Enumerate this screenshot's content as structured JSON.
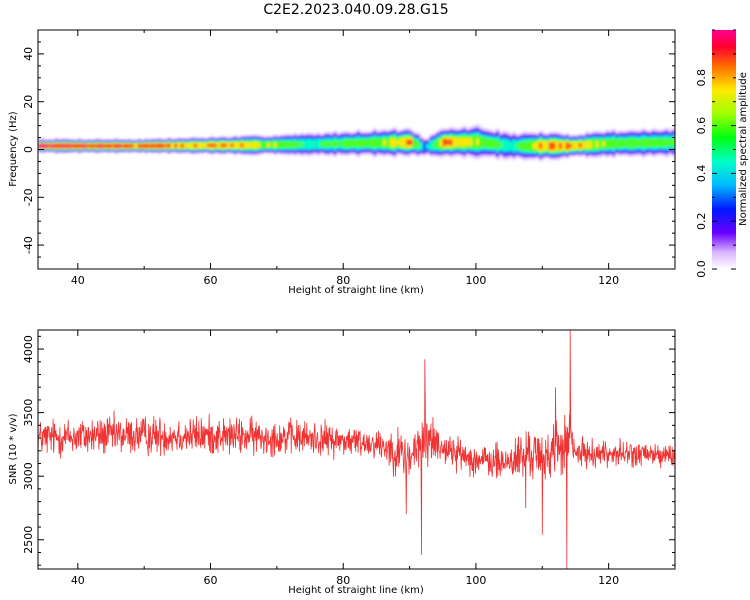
{
  "title": "C2E2.2023.040.09.28.G15",
  "chart_data": [
    {
      "type": "heatmap",
      "name": "spectrogram",
      "xlabel": "Height of straight line (km)",
      "ylabel": "Frequency (Hz)",
      "xlim": [
        34,
        130
      ],
      "ylim": [
        -50,
        50
      ],
      "xticks": [
        40,
        60,
        80,
        100,
        120
      ],
      "yticks": [
        -40,
        -20,
        0,
        20,
        40
      ],
      "colormap": "rainbow (purple-blue-cyan-green-yellow-red-pink)",
      "colorbar": {
        "label": "Normalized spectral amplitude",
        "range": [
          0,
          1
        ],
        "ticks": [
          0.0,
          0.2,
          0.4,
          0.6,
          0.8
        ],
        "tick_labels": [
          "0.0",
          "0.2",
          "0.4",
          "0.6",
          "0.8"
        ]
      },
      "band": {
        "description": "narrow high-amplitude band near 1-3 Hz widening after ~65 km",
        "center_x": [
          35,
          50,
          65,
          75,
          85,
          90,
          92,
          95,
          100,
          105,
          110,
          114,
          120,
          130
        ],
        "center_y": [
          1.5,
          1.5,
          1.8,
          2.2,
          2.8,
          3.0,
          1.0,
          3.0,
          3.2,
          1.5,
          1.5,
          1.5,
          2.5,
          3.0
        ],
        "half_width_hz": [
          1.5,
          1.5,
          2.0,
          2.5,
          3.0,
          3.0,
          2.0,
          3.0,
          3.5,
          3.0,
          3.0,
          2.5,
          3.0,
          3.0
        ],
        "peak_amplitude": [
          1.0,
          0.95,
          0.85,
          0.6,
          0.7,
          0.9,
          0.4,
          0.9,
          0.75,
          0.55,
          0.9,
          0.9,
          0.7,
          0.65
        ]
      }
    },
    {
      "type": "line",
      "name": "snr",
      "xlabel": "Height of straight line (km)",
      "ylabel": "SNR (10 * v/v)",
      "xlim": [
        34,
        130
      ],
      "ylim": [
        2270,
        4150
      ],
      "xticks": [
        40,
        60,
        80,
        100,
        120
      ],
      "yticks": [
        2500,
        3000,
        3500,
        4000
      ],
      "color": "#f03232",
      "envelope": {
        "description": "noisy signal; mean and half-amplitude by height",
        "x": [
          34,
          45,
          60,
          75,
          85,
          88,
          90,
          92,
          93,
          96,
          100,
          104,
          107,
          109,
          110,
          112,
          113,
          114,
          115,
          120,
          125,
          130
        ],
        "mean": [
          3300,
          3320,
          3320,
          3300,
          3260,
          3200,
          3150,
          3250,
          3300,
          3200,
          3130,
          3100,
          3150,
          3200,
          3100,
          3250,
          3200,
          3300,
          3180,
          3180,
          3170,
          3160
        ],
        "half_amplitude": [
          220,
          230,
          220,
          200,
          170,
          260,
          300,
          350,
          300,
          180,
          180,
          220,
          300,
          300,
          250,
          320,
          300,
          400,
          160,
          150,
          150,
          150
        ]
      },
      "extremes": [
        {
          "x": 89.5,
          "y": 2700
        },
        {
          "x": 91.8,
          "y": 2380
        },
        {
          "x": 92.3,
          "y": 3920
        },
        {
          "x": 107.5,
          "y": 2750
        },
        {
          "x": 110.0,
          "y": 2540
        },
        {
          "x": 112.0,
          "y": 3700
        },
        {
          "x": 113.7,
          "y": 2270
        },
        {
          "x": 114.2,
          "y": 4150
        }
      ]
    }
  ]
}
